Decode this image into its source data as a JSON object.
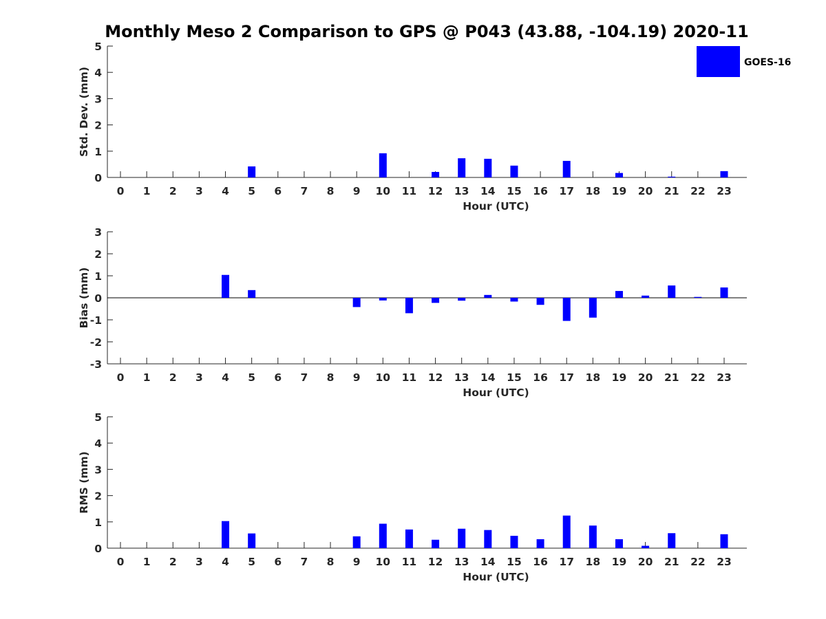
{
  "title": "Monthly Meso 2 Comparison to GPS @ P043 (43.88, -104.19) 2020-11",
  "legend": {
    "label": "GOES-16",
    "color": "#0000ff",
    "placement": "top-right, outside axes"
  },
  "series_color": "#0000ff",
  "chart_data": [
    {
      "type": "bar",
      "series_name": "GOES-16",
      "xlabel": "Hour (UTC)",
      "ylabel": "Std. Dev. (mm)",
      "ylim": [
        0,
        5
      ],
      "yticks": [
        0,
        1,
        2,
        3,
        4,
        5
      ],
      "categories": [
        "0",
        "1",
        "2",
        "3",
        "4",
        "5",
        "6",
        "7",
        "8",
        "9",
        "10",
        "11",
        "12",
        "13",
        "14",
        "15",
        "16",
        "17",
        "18",
        "19",
        "20",
        "21",
        "22",
        "23"
      ],
      "values": [
        0,
        0,
        0,
        0,
        0,
        0.42,
        0,
        0,
        0,
        0,
        0.92,
        0,
        0.21,
        0.73,
        0.71,
        0.45,
        0,
        0.63,
        0,
        0.17,
        0,
        0.03,
        0,
        0.24
      ],
      "zero_line": false
    },
    {
      "type": "bar",
      "series_name": "GOES-16",
      "xlabel": "Hour (UTC)",
      "ylabel": "Bias (mm)",
      "ylim": [
        -3,
        3
      ],
      "yticks": [
        -3,
        -2,
        -1,
        0,
        1,
        2,
        3
      ],
      "categories": [
        "0",
        "1",
        "2",
        "3",
        "4",
        "5",
        "6",
        "7",
        "8",
        "9",
        "10",
        "11",
        "12",
        "13",
        "14",
        "15",
        "16",
        "17",
        "18",
        "19",
        "20",
        "21",
        "22",
        "23"
      ],
      "values": [
        0,
        0,
        0,
        0,
        1.04,
        0.35,
        0,
        0,
        0,
        -0.42,
        -0.12,
        -0.7,
        -0.23,
        -0.13,
        0.13,
        -0.17,
        -0.32,
        -1.05,
        -0.9,
        0.31,
        0.1,
        0.56,
        0.04,
        0.47
      ],
      "zero_line": true
    },
    {
      "type": "bar",
      "series_name": "GOES-16",
      "xlabel": "Hour (UTC)",
      "ylabel": "RMS (mm)",
      "ylim": [
        0,
        5
      ],
      "yticks": [
        0,
        1,
        2,
        3,
        4,
        5
      ],
      "categories": [
        "0",
        "1",
        "2",
        "3",
        "4",
        "5",
        "6",
        "7",
        "8",
        "9",
        "10",
        "11",
        "12",
        "13",
        "14",
        "15",
        "16",
        "17",
        "18",
        "19",
        "20",
        "21",
        "22",
        "23"
      ],
      "values": [
        0,
        0,
        0,
        0,
        1.03,
        0.56,
        0,
        0,
        0,
        0.45,
        0.93,
        0.71,
        0.32,
        0.74,
        0.69,
        0.47,
        0.34,
        1.24,
        0.86,
        0.34,
        0.09,
        0.57,
        0,
        0.53
      ],
      "zero_line": false
    }
  ]
}
